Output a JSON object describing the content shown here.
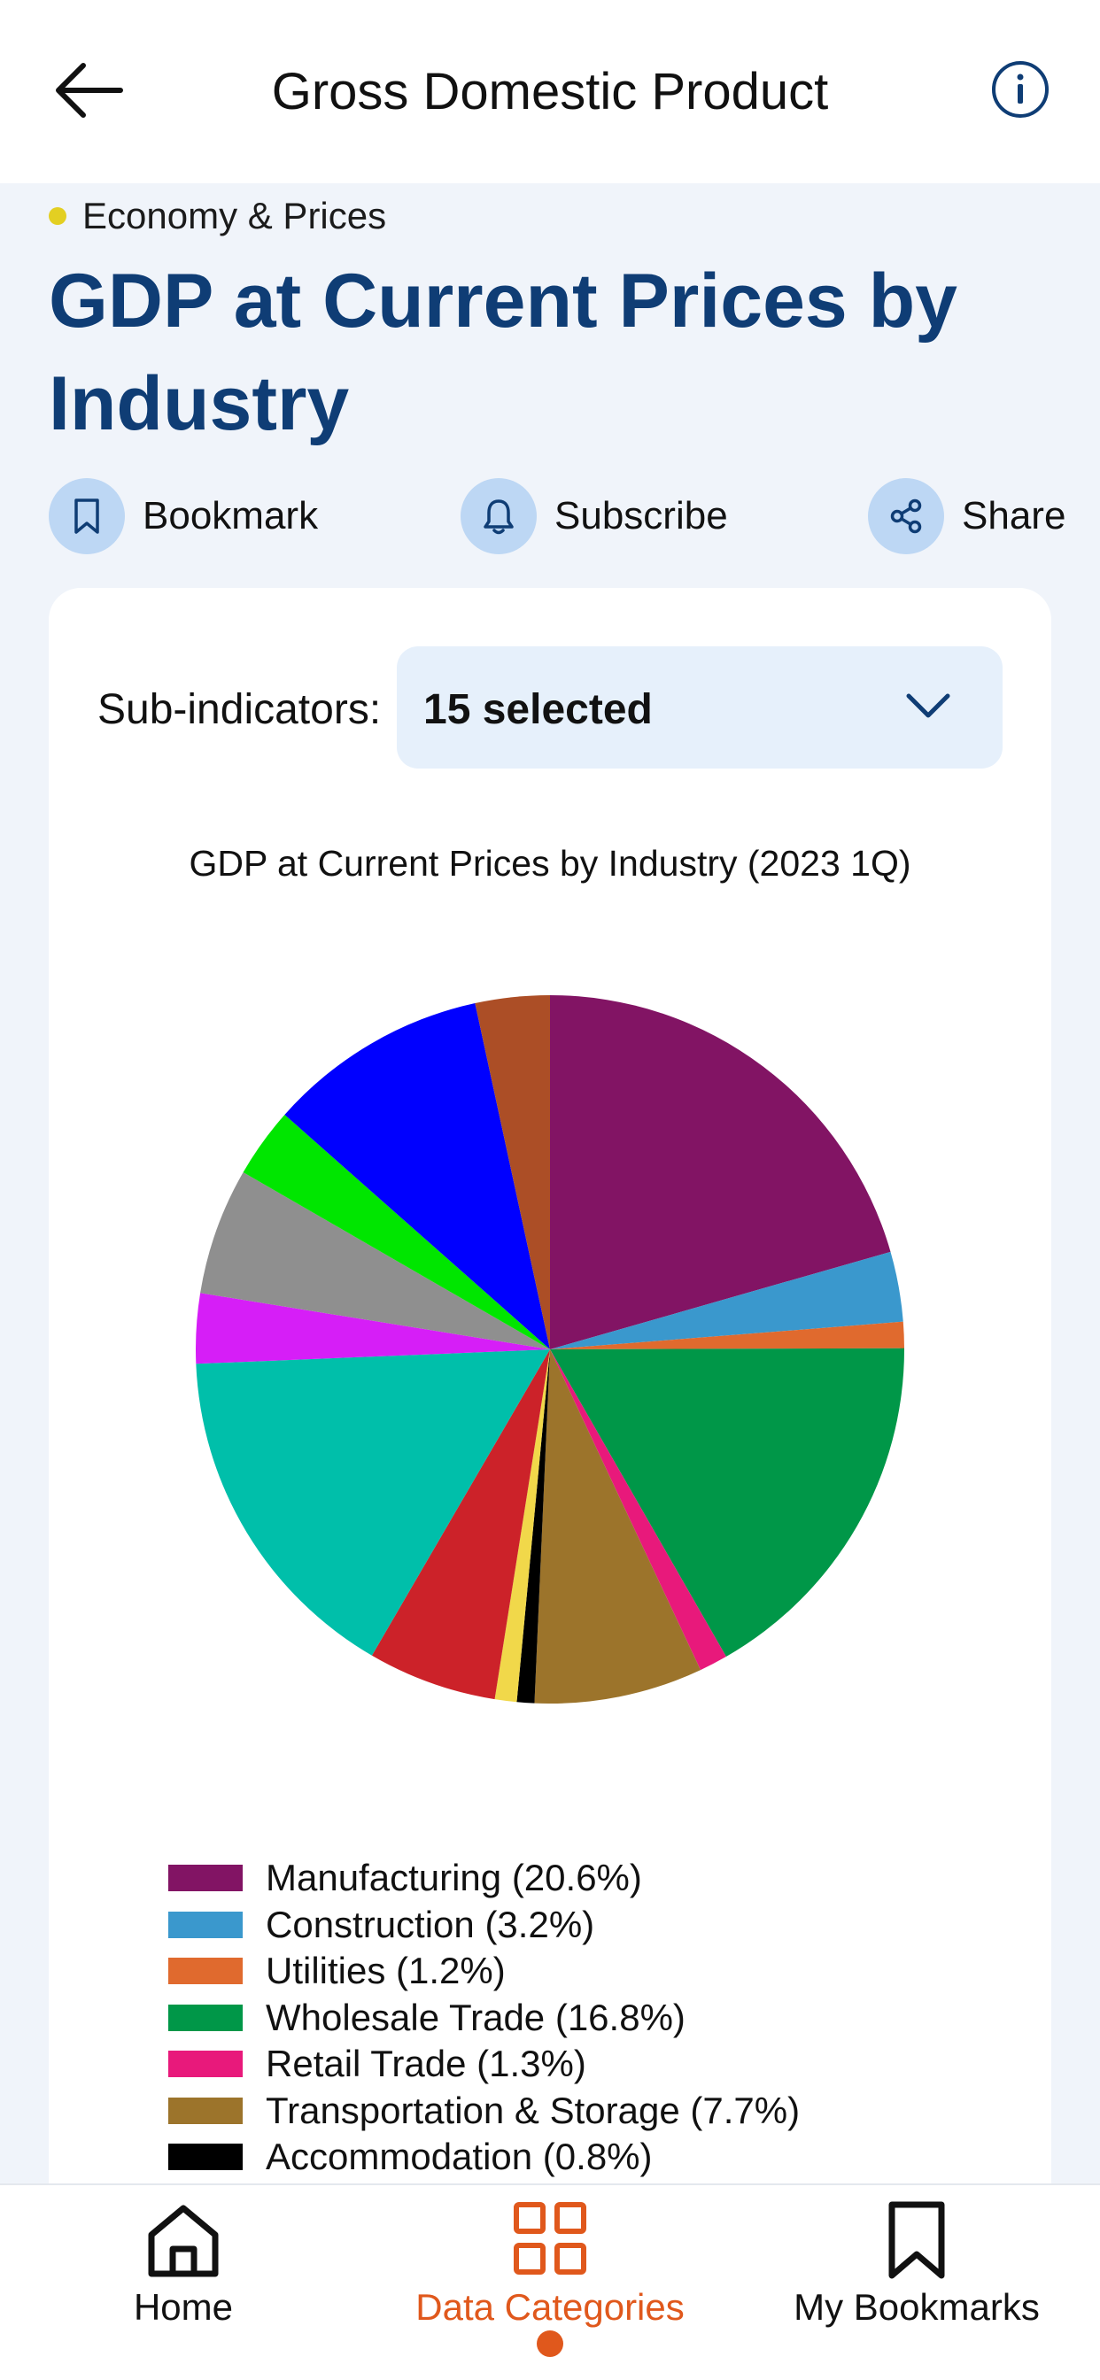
{
  "header": {
    "title": "Gross Domestic Product"
  },
  "category": "Economy & Prices",
  "page_title": "GDP at Current Prices by Industry",
  "actions": {
    "bookmark": "Bookmark",
    "subscribe": "Subscribe",
    "share": "Share"
  },
  "subindicators": {
    "label": "Sub-indicators:",
    "value": "15 selected"
  },
  "chart_data": {
    "type": "pie",
    "title": "GDP at Current Prices by Industry (2023 1Q)",
    "slices": [
      {
        "name": "Manufacturing (20.6%)",
        "value": 20.6,
        "color": "#821464"
      },
      {
        "name": "Construction (3.2%)",
        "value": 3.2,
        "color": "#3a98cd"
      },
      {
        "name": "Utilities (1.2%)",
        "value": 1.2,
        "color": "#e06a2e"
      },
      {
        "name": "Wholesale Trade (16.8%)",
        "value": 16.8,
        "color": "#009748"
      },
      {
        "name": "Retail Trade (1.3%)",
        "value": 1.3,
        "color": "#e8197b"
      },
      {
        "name": "Transportation & Storage (7.7%)",
        "value": 7.7,
        "color": "#9c742b"
      },
      {
        "name": "Accommodation (0.8%)",
        "value": 0.8,
        "color": "#000000"
      },
      {
        "name": "",
        "value": 1.0,
        "color": "#f1d84a"
      },
      {
        "name": "",
        "value": 5.9,
        "color": "#cc2229"
      },
      {
        "name": "",
        "value": 16.0,
        "color": "#00bfaa"
      },
      {
        "name": "",
        "value": 3.2,
        "color": "#d61ef7"
      },
      {
        "name": "",
        "value": 5.8,
        "color": "#8f8f8f"
      },
      {
        "name": "",
        "value": 3.2,
        "color": "#00e600"
      },
      {
        "name": "",
        "value": 10.1,
        "color": "#0000ff"
      },
      {
        "name": "",
        "value": 3.4,
        "color": "#ac4e26"
      }
    ],
    "legend_position": "bottom"
  },
  "nav": {
    "home": "Home",
    "data_categories": "Data Categories",
    "my_bookmarks": "My Bookmarks"
  },
  "colors": {
    "accent": "#e0581c",
    "title": "#0f3d75",
    "icon_circle": "#bdd7f4"
  }
}
